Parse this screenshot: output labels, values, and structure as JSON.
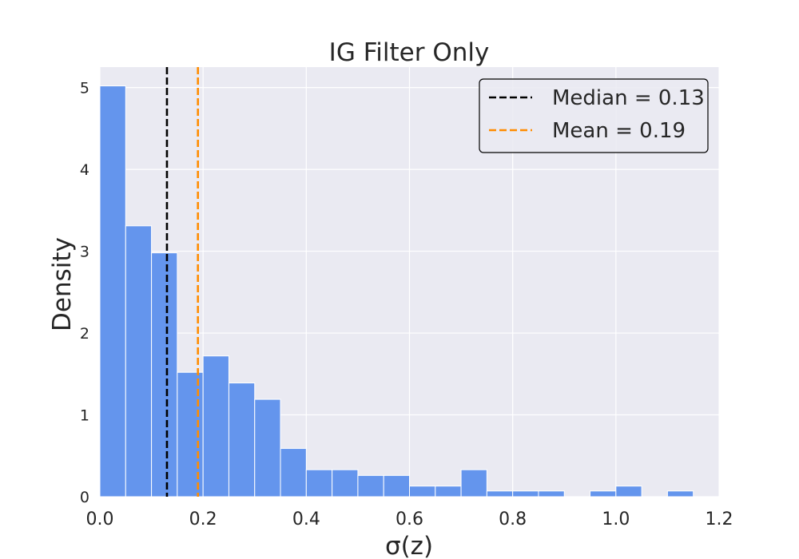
{
  "chart_data": {
    "type": "bar",
    "title": "IG Filter Only",
    "xlabel": "σ(z)",
    "ylabel": "Density",
    "xlim": [
      0.0,
      1.2
    ],
    "ylim": [
      0,
      5.25
    ],
    "xticks": [
      "0.0",
      "0.2",
      "0.4",
      "0.6",
      "0.8",
      "1.0",
      "1.2"
    ],
    "yticks": [
      "0",
      "1",
      "2",
      "3",
      "4",
      "5"
    ],
    "grid": true,
    "legend_position": "top-right",
    "bin_width": 0.05,
    "bins": [
      {
        "x0": 0.0,
        "x1": 0.05,
        "density": 5.02
      },
      {
        "x0": 0.05,
        "x1": 0.1,
        "density": 3.31
      },
      {
        "x0": 0.1,
        "x1": 0.15,
        "density": 2.98
      },
      {
        "x0": 0.15,
        "x1": 0.2,
        "density": 1.52
      },
      {
        "x0": 0.2,
        "x1": 0.25,
        "density": 1.72
      },
      {
        "x0": 0.25,
        "x1": 0.3,
        "density": 1.39
      },
      {
        "x0": 0.3,
        "x1": 0.35,
        "density": 1.19
      },
      {
        "x0": 0.35,
        "x1": 0.4,
        "density": 0.59
      },
      {
        "x0": 0.4,
        "x1": 0.45,
        "density": 0.33
      },
      {
        "x0": 0.45,
        "x1": 0.5,
        "density": 0.33
      },
      {
        "x0": 0.5,
        "x1": 0.55,
        "density": 0.26
      },
      {
        "x0": 0.55,
        "x1": 0.6,
        "density": 0.26
      },
      {
        "x0": 0.6,
        "x1": 0.65,
        "density": 0.13
      },
      {
        "x0": 0.65,
        "x1": 0.7,
        "density": 0.13
      },
      {
        "x0": 0.7,
        "x1": 0.75,
        "density": 0.33
      },
      {
        "x0": 0.75,
        "x1": 0.8,
        "density": 0.07
      },
      {
        "x0": 0.8,
        "x1": 0.85,
        "density": 0.07
      },
      {
        "x0": 0.85,
        "x1": 0.9,
        "density": 0.07
      },
      {
        "x0": 0.9,
        "x1": 0.95,
        "density": 0.0
      },
      {
        "x0": 0.95,
        "x1": 1.0,
        "density": 0.07
      },
      {
        "x0": 1.0,
        "x1": 1.05,
        "density": 0.13
      },
      {
        "x0": 1.05,
        "x1": 1.1,
        "density": 0.0
      },
      {
        "x0": 1.1,
        "x1": 1.15,
        "density": 0.07
      }
    ],
    "reference_lines": [
      {
        "name": "Median",
        "value": 0.13,
        "label": "Median = 0.13",
        "color": "#000000",
        "style": "dashed"
      },
      {
        "name": "Mean",
        "value": 0.19,
        "label": "Mean = 0.19",
        "color": "#ff8c00",
        "style": "dashed"
      }
    ],
    "colors": {
      "bar_fill": "#6495ed",
      "bar_edge": "#ffffff",
      "plot_background": "#eaeaf2",
      "grid": "#ffffff",
      "text": "#262626"
    }
  }
}
